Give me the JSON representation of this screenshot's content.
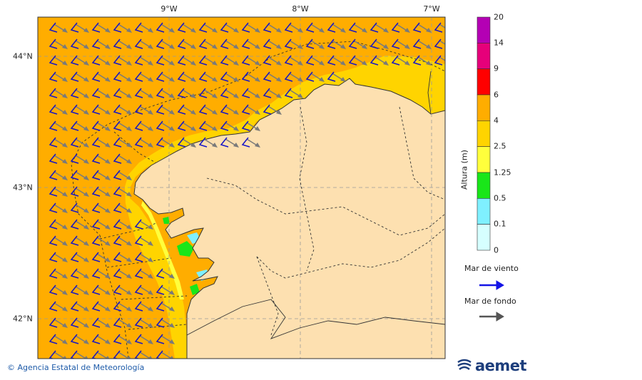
{
  "map": {
    "lon_labels": [
      {
        "lon": -9,
        "text": "9°W"
      },
      {
        "lon": -8,
        "text": "8°W"
      },
      {
        "lon": -7,
        "text": "7°W"
      }
    ],
    "lat_labels": [
      {
        "lat": 44,
        "text": "44°N"
      },
      {
        "lat": 43,
        "text": "43°N"
      },
      {
        "lat": 42,
        "text": "42°N"
      }
    ],
    "colors": {
      "land": "#fde0b0",
      "sea_4_6": "#ffad00",
      "sea_2_5_4": "#ffd400",
      "sea_1_25_2_5": "#ffff3c",
      "sea_0_5_1_25": "#19e619",
      "sea_0_1_0_5": "#7ff0ff",
      "wind_arrow": "#1414c8",
      "swell_arrow": "#7a7a7a"
    }
  },
  "colorbar": {
    "title": "Altura (m)",
    "ticks": [
      "20",
      "14",
      "9",
      "6",
      "4",
      "2.5",
      "1.25",
      "0.5",
      "0.1",
      "0"
    ],
    "colors": [
      "#b400b4",
      "#e6007a",
      "#ff0000",
      "#ffad00",
      "#ffd400",
      "#ffff3c",
      "#19e619",
      "#7ff0ff",
      "#d6ffff"
    ]
  },
  "legend": {
    "wind_label": "Mar de viento",
    "swell_label": "Mar de fondo",
    "wind_color": "#1414e6",
    "swell_color": "#555555"
  },
  "footer": {
    "copyright": "© Agencia Estatal de Meteorología",
    "logo_text": "aemet"
  }
}
